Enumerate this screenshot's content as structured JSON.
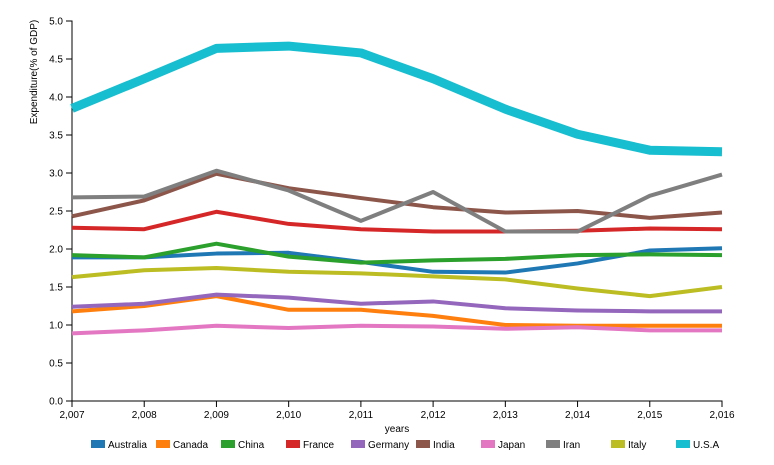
{
  "chart_data": {
    "type": "line",
    "title": "",
    "xlabel": "years",
    "ylabel": "Expenditure(% of GDP)",
    "x": [
      2007,
      2008,
      2009,
      2010,
      2011,
      2012,
      2013,
      2014,
      2015,
      2016
    ],
    "x_tick_labels": [
      "2,007",
      "2,008",
      "2,009",
      "2,010",
      "2,011",
      "2,012",
      "2,013",
      "2,014",
      "2,015",
      "2,016"
    ],
    "ylim": [
      0,
      5
    ],
    "y_ticks": [
      "0.0",
      "0.5",
      "1.0",
      "1.5",
      "2.0",
      "2.5",
      "3.0",
      "3.5",
      "4.0",
      "4.5",
      "5.0"
    ],
    "grid": false,
    "legend_position": "bottom",
    "series": [
      {
        "name": "Australia",
        "color": "#1f77b4",
        "values": [
          1.89,
          1.89,
          1.94,
          1.95,
          1.83,
          1.7,
          1.69,
          1.81,
          1.98,
          2.01
        ]
      },
      {
        "name": "Canada",
        "color": "#ff7f0e",
        "values": [
          1.18,
          1.25,
          1.38,
          1.2,
          1.2,
          1.12,
          1.0,
          0.99,
          0.99,
          0.99
        ]
      },
      {
        "name": "China",
        "color": "#2ca02c",
        "values": [
          1.92,
          1.89,
          2.07,
          1.9,
          1.82,
          1.85,
          1.87,
          1.92,
          1.93,
          1.92
        ]
      },
      {
        "name": "France",
        "color": "#d62728",
        "values": [
          2.28,
          2.26,
          2.49,
          2.33,
          2.26,
          2.23,
          2.23,
          2.24,
          2.27,
          2.26
        ]
      },
      {
        "name": "Germany",
        "color": "#9467bd",
        "values": [
          1.24,
          1.28,
          1.4,
          1.36,
          1.28,
          1.31,
          1.22,
          1.19,
          1.18,
          1.18
        ]
      },
      {
        "name": "India",
        "color": "#8c564b",
        "values": [
          2.43,
          2.64,
          2.99,
          2.8,
          2.67,
          2.55,
          2.48,
          2.5,
          2.41,
          2.48
        ]
      },
      {
        "name": "Japan",
        "color": "#e377c2",
        "values": [
          0.89,
          0.93,
          0.99,
          0.96,
          0.99,
          0.98,
          0.95,
          0.97,
          0.93,
          0.93
        ]
      },
      {
        "name": "Iran",
        "color": "#7f7f7f",
        "values": [
          2.68,
          2.69,
          3.03,
          2.77,
          2.37,
          2.75,
          2.23,
          2.23,
          2.7,
          2.98
        ]
      },
      {
        "name": "Italy",
        "color": "#bcbd22",
        "values": [
          1.63,
          1.72,
          1.75,
          1.7,
          1.68,
          1.64,
          1.6,
          1.48,
          1.38,
          1.5
        ]
      },
      {
        "name": "U.S.A",
        "color": "#17becf",
        "values": [
          3.85,
          4.24,
          4.64,
          4.67,
          4.58,
          4.24,
          3.84,
          3.51,
          3.3,
          3.28
        ]
      }
    ]
  }
}
